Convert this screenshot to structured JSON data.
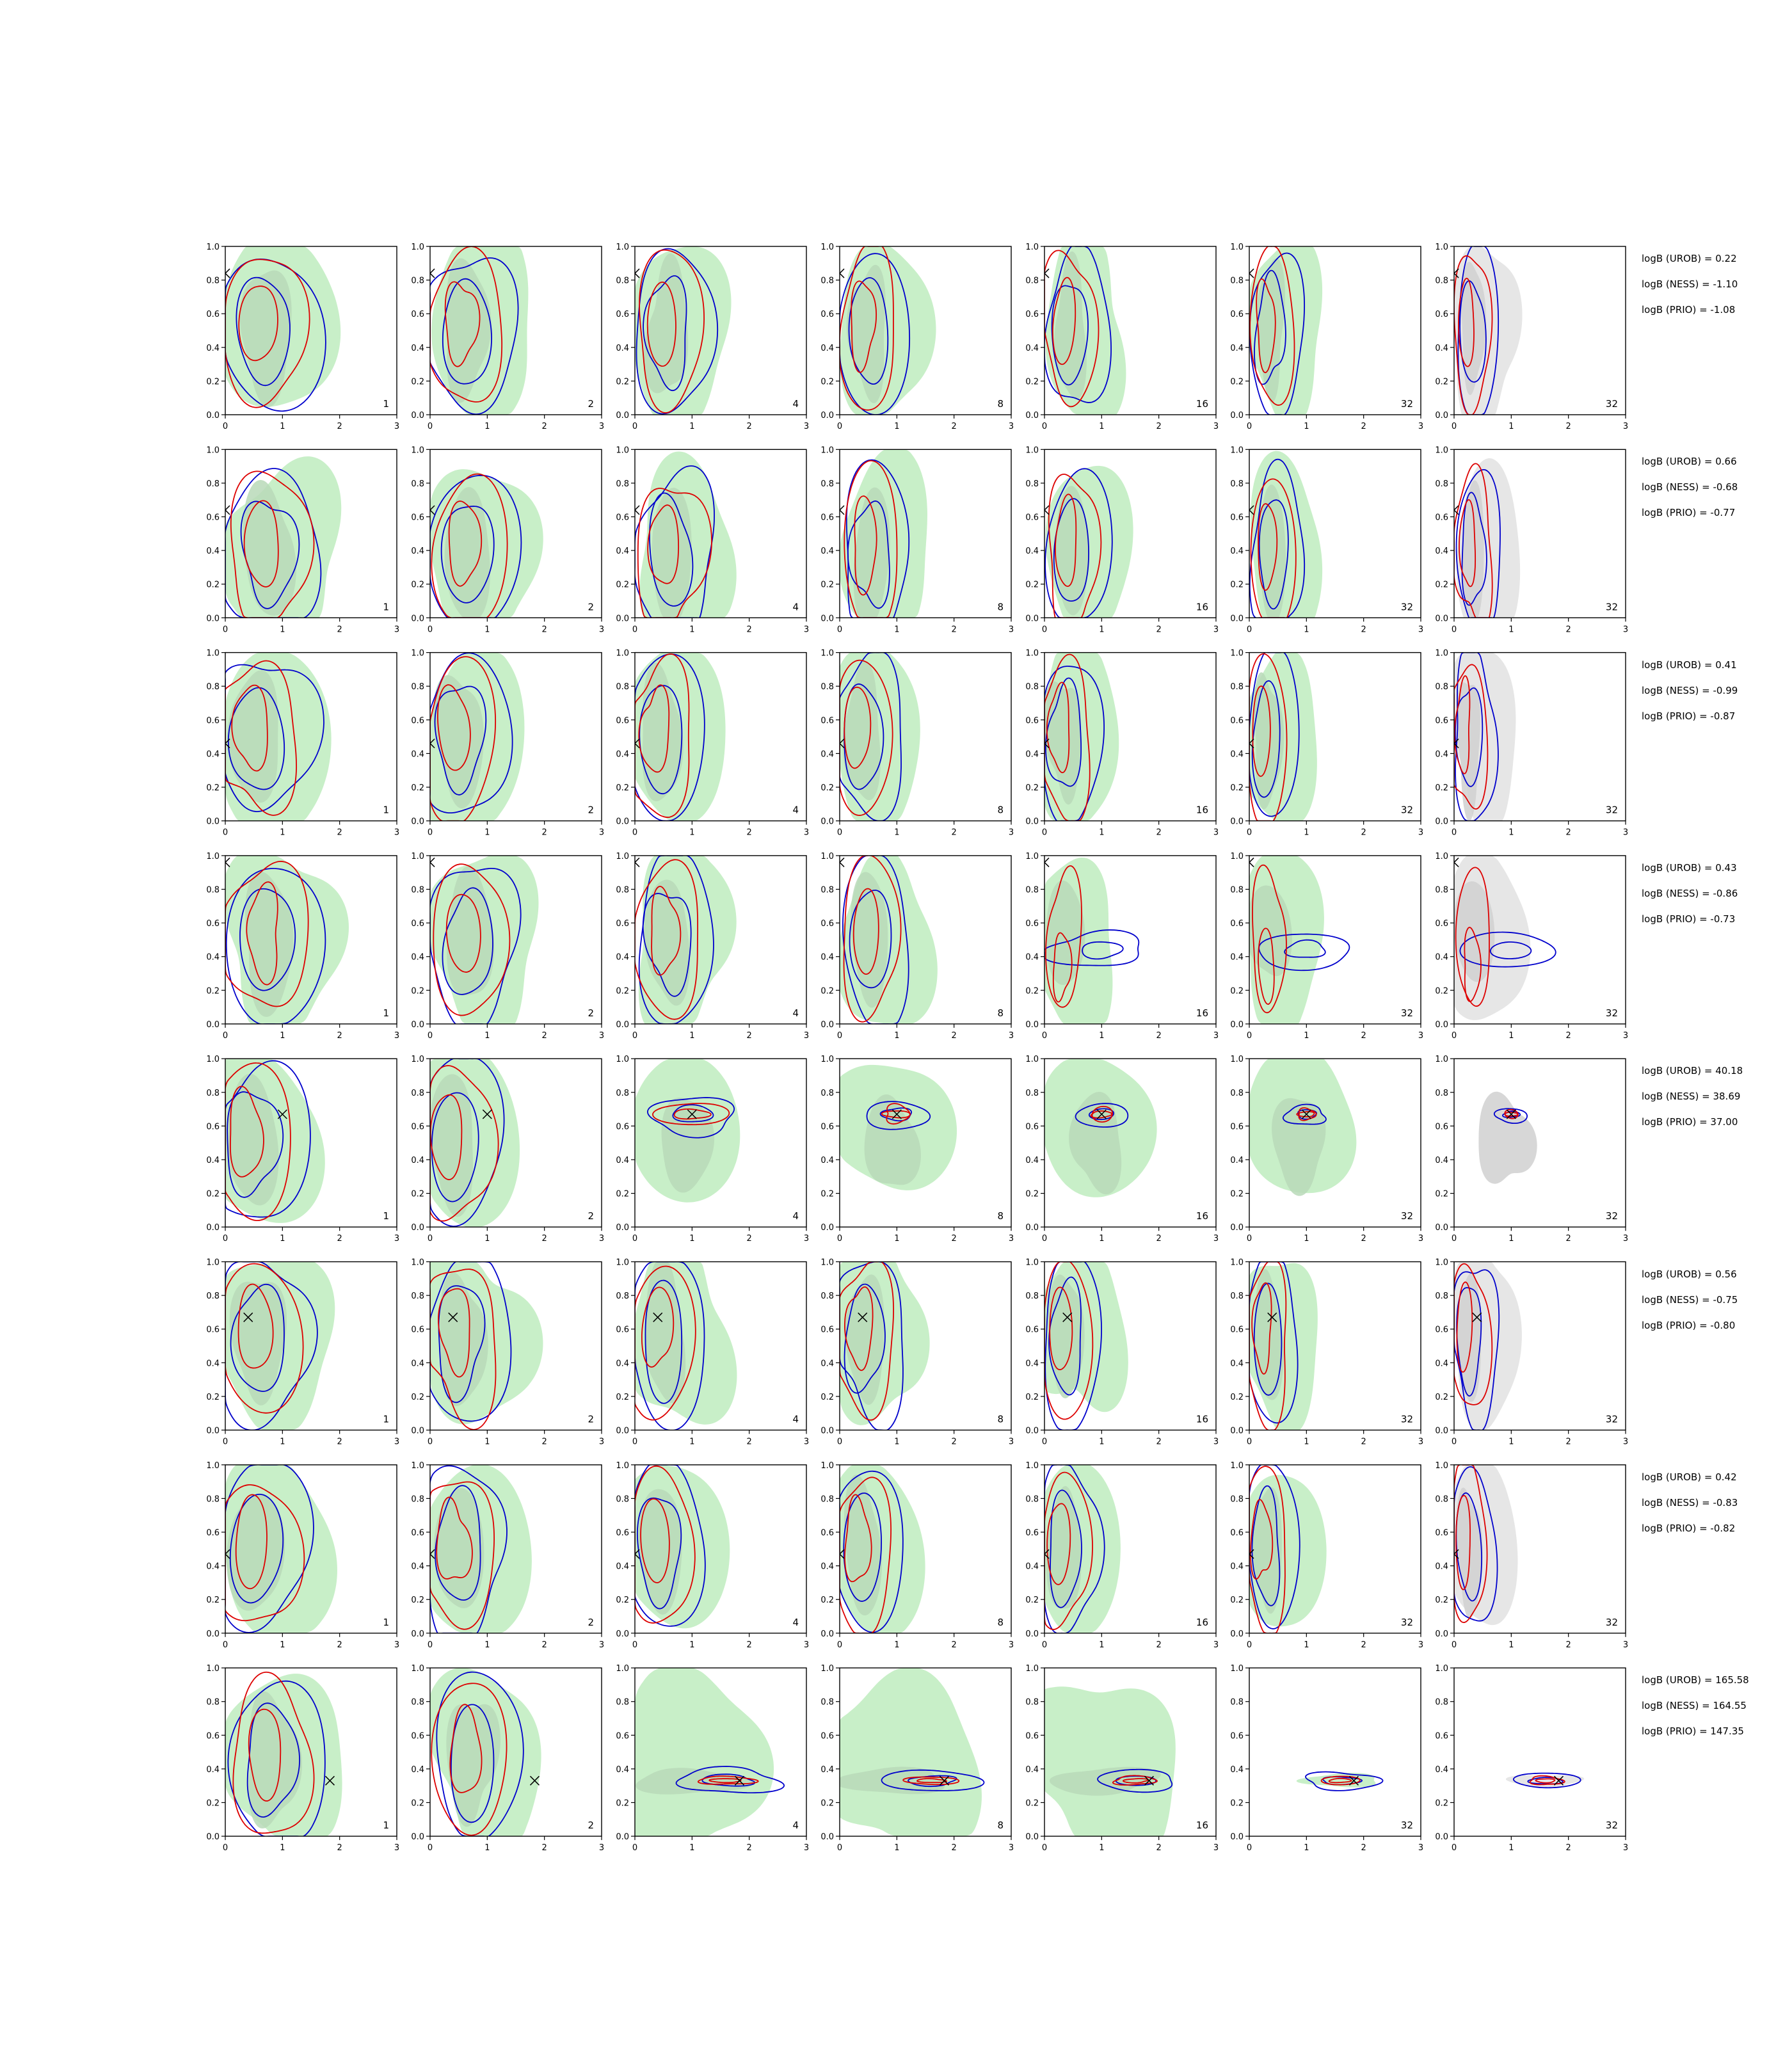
{
  "chart_data": {
    "type": "contour-grid",
    "layout": {
      "rows": 8,
      "cols": 7
    },
    "xlim": [
      0,
      3
    ],
    "ylim": [
      0,
      1.0
    ],
    "xticks": [
      "0",
      "1",
      "2",
      "3"
    ],
    "yticks": [
      "0.0",
      "0.2",
      "0.4",
      "0.6",
      "0.8",
      "1.0"
    ],
    "panel_labels": [
      "1",
      "2",
      "4",
      "8",
      "16",
      "32",
      "32"
    ],
    "colors": {
      "red": "#dd0000",
      "blue": "#0000cc",
      "green": "#99dd99",
      "gray": "#bbbbbb"
    },
    "rows": [
      {
        "truth": [
          0.0,
          0.84
        ],
        "logB": [
          "logB (UROB) = 0.22",
          "logB (NESS) = -1.10",
          "logB (PRIO) = -1.08"
        ]
      },
      {
        "truth": [
          0.0,
          0.64
        ],
        "logB": [
          "logB (UROB) = 0.66",
          "logB (NESS) = -0.68",
          "logB (PRIO) = -0.77"
        ]
      },
      {
        "truth": [
          0.0,
          0.46
        ],
        "logB": [
          "logB (UROB) = 0.41",
          "logB (NESS) = -0.99",
          "logB (PRIO) = -0.87"
        ]
      },
      {
        "truth": [
          0.0,
          0.96
        ],
        "logB": [
          "logB (UROB) = 0.43",
          "logB (NESS) = -0.86",
          "logB (PRIO) = -0.73"
        ]
      },
      {
        "truth": [
          1.0,
          0.67
        ],
        "logB": [
          "logB (UROB) = 40.18",
          "logB (NESS) = 38.69",
          "logB (PRIO) = 37.00"
        ]
      },
      {
        "truth": [
          0.4,
          0.67
        ],
        "logB": [
          "logB (UROB) = 0.56",
          "logB (NESS) = -0.75",
          "logB (PRIO) = -0.80"
        ]
      },
      {
        "truth": [
          0.0,
          0.47
        ],
        "logB": [
          "logB (UROB) = 0.42",
          "logB (NESS) = -0.83",
          "logB (PRIO) = -0.82"
        ]
      },
      {
        "truth": [
          1.83,
          0.33
        ],
        "logB": [
          "logB (UROB) = 165.58",
          "logB (NESS) = 164.55",
          "logB (PRIO) = 147.35"
        ]
      }
    ]
  }
}
